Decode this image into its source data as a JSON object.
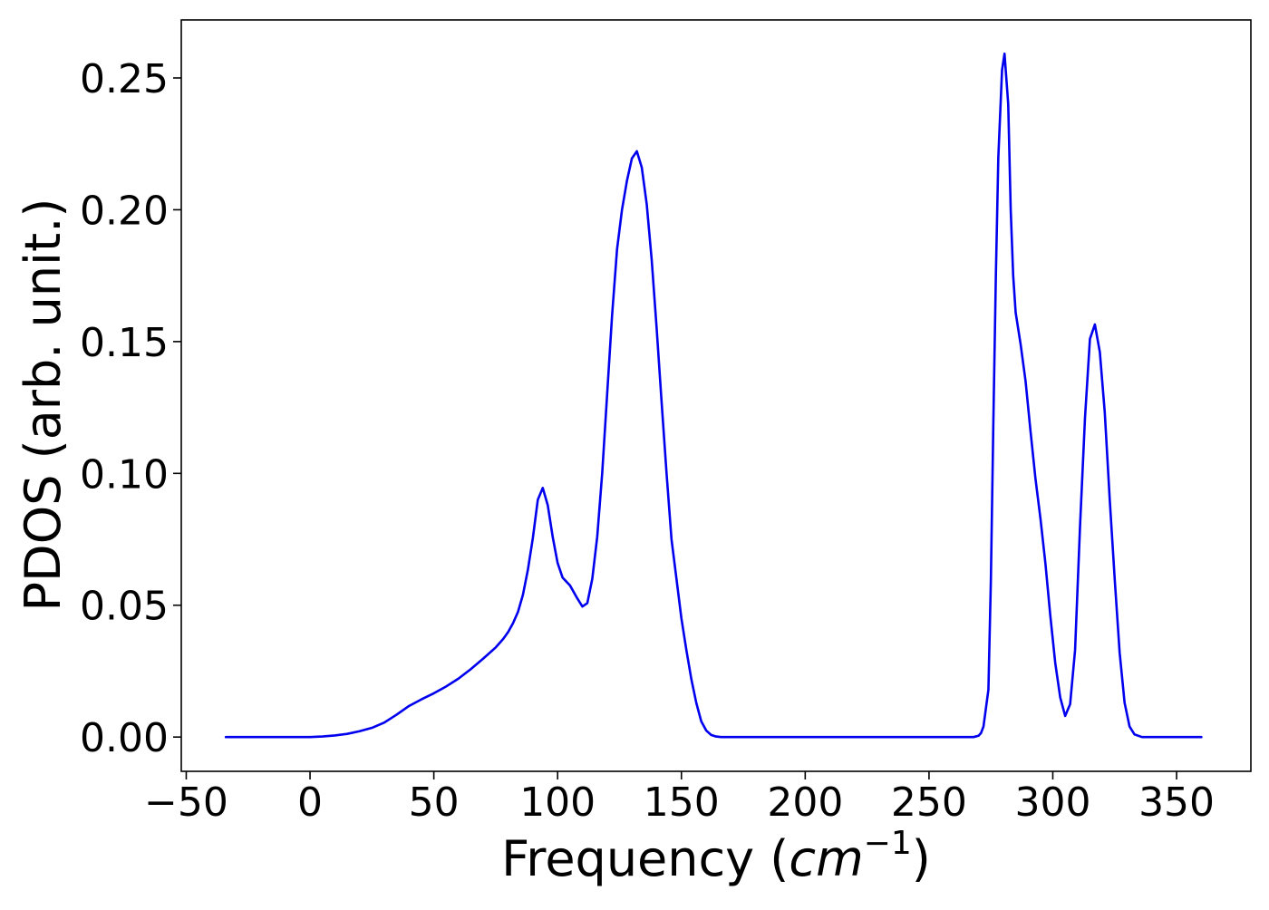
{
  "chart_data": {
    "type": "line",
    "title": "",
    "xlabel": "Frequency (cm⁻¹)",
    "xlabel_parts": {
      "prefix": "Frequency (",
      "unit_base": "cm",
      "unit_exponent": "−1",
      "suffix": ")"
    },
    "ylabel": "PDOS (arb. unit.)",
    "xlim": [
      -52,
      380
    ],
    "ylim": [
      -0.013,
      0.272
    ],
    "xticks": [
      -50,
      0,
      50,
      100,
      150,
      200,
      250,
      300,
      350
    ],
    "xtick_labels": [
      "−50",
      "0",
      "50",
      "100",
      "150",
      "200",
      "250",
      "300",
      "350"
    ],
    "yticks": [
      0.0,
      0.05,
      0.1,
      0.15,
      0.2,
      0.25
    ],
    "ytick_labels": [
      "0.00",
      "0.05",
      "0.10",
      "0.15",
      "0.20",
      "0.25"
    ],
    "grid": false,
    "legend": "none",
    "series": [
      {
        "color": "#0000ee",
        "points": [
          [
            -34,
            0.0
          ],
          [
            -20,
            0.0
          ],
          [
            -10,
            0.0
          ],
          [
            0,
            0.0
          ],
          [
            5,
            0.0002
          ],
          [
            10,
            0.0006
          ],
          [
            15,
            0.0012
          ],
          [
            20,
            0.0022
          ],
          [
            25,
            0.0035
          ],
          [
            30,
            0.0055
          ],
          [
            35,
            0.0085
          ],
          [
            40,
            0.0118
          ],
          [
            45,
            0.0143
          ],
          [
            50,
            0.0166
          ],
          [
            55,
            0.0192
          ],
          [
            60,
            0.0222
          ],
          [
            65,
            0.0258
          ],
          [
            70,
            0.0298
          ],
          [
            75,
            0.034
          ],
          [
            78,
            0.0372
          ],
          [
            80,
            0.0398
          ],
          [
            82,
            0.0432
          ],
          [
            84,
            0.0475
          ],
          [
            86,
            0.054
          ],
          [
            88,
            0.0635
          ],
          [
            90,
            0.0755
          ],
          [
            92,
            0.09
          ],
          [
            94,
            0.0945
          ],
          [
            96,
            0.088
          ],
          [
            98,
            0.076
          ],
          [
            100,
            0.066
          ],
          [
            102,
            0.0605
          ],
          [
            105,
            0.0575
          ],
          [
            108,
            0.0525
          ],
          [
            110,
            0.0495
          ],
          [
            112,
            0.0508
          ],
          [
            114,
            0.06
          ],
          [
            116,
            0.076
          ],
          [
            118,
            0.1
          ],
          [
            120,
            0.13
          ],
          [
            122,
            0.16
          ],
          [
            124,
            0.185
          ],
          [
            126,
            0.2
          ],
          [
            128,
            0.211
          ],
          [
            130,
            0.2195
          ],
          [
            132,
            0.2222
          ],
          [
            134,
            0.216
          ],
          [
            136,
            0.202
          ],
          [
            138,
            0.181
          ],
          [
            140,
            0.155
          ],
          [
            142,
            0.127
          ],
          [
            144,
            0.1
          ],
          [
            146,
            0.075
          ],
          [
            148,
            0.06
          ],
          [
            150,
            0.045
          ],
          [
            152,
            0.033
          ],
          [
            154,
            0.022
          ],
          [
            156,
            0.013
          ],
          [
            158,
            0.006
          ],
          [
            160,
            0.0025
          ],
          [
            162,
            0.0008
          ],
          [
            164,
            0.0002
          ],
          [
            166,
            0.0
          ],
          [
            200,
            0.0
          ],
          [
            240,
            0.0
          ],
          [
            268,
            0.0
          ],
          [
            270,
            0.0005
          ],
          [
            271,
            0.0015
          ],
          [
            272,
            0.004
          ],
          [
            274,
            0.018
          ],
          [
            275,
            0.06
          ],
          [
            276,
            0.12
          ],
          [
            277,
            0.175
          ],
          [
            278,
            0.22
          ],
          [
            279.5,
            0.253
          ],
          [
            280.5,
            0.2592
          ],
          [
            282,
            0.24
          ],
          [
            283,
            0.2
          ],
          [
            284,
            0.175
          ],
          [
            285,
            0.161
          ],
          [
            287,
            0.149
          ],
          [
            289,
            0.135
          ],
          [
            291,
            0.116
          ],
          [
            293,
            0.098
          ],
          [
            295,
            0.083
          ],
          [
            297,
            0.066
          ],
          [
            299,
            0.046
          ],
          [
            301,
            0.028
          ],
          [
            303,
            0.015
          ],
          [
            305,
            0.008
          ],
          [
            307,
            0.0125
          ],
          [
            309,
            0.033
          ],
          [
            311,
            0.08
          ],
          [
            313,
            0.121
          ],
          [
            315,
            0.151
          ],
          [
            317,
            0.1565
          ],
          [
            319,
            0.146
          ],
          [
            321,
            0.123
          ],
          [
            323,
            0.09
          ],
          [
            325,
            0.06
          ],
          [
            327,
            0.032
          ],
          [
            329,
            0.013
          ],
          [
            331,
            0.004
          ],
          [
            333,
            0.001
          ],
          [
            336,
            0.0
          ],
          [
            345,
            0.0
          ],
          [
            360,
            0.0
          ]
        ]
      }
    ]
  }
}
